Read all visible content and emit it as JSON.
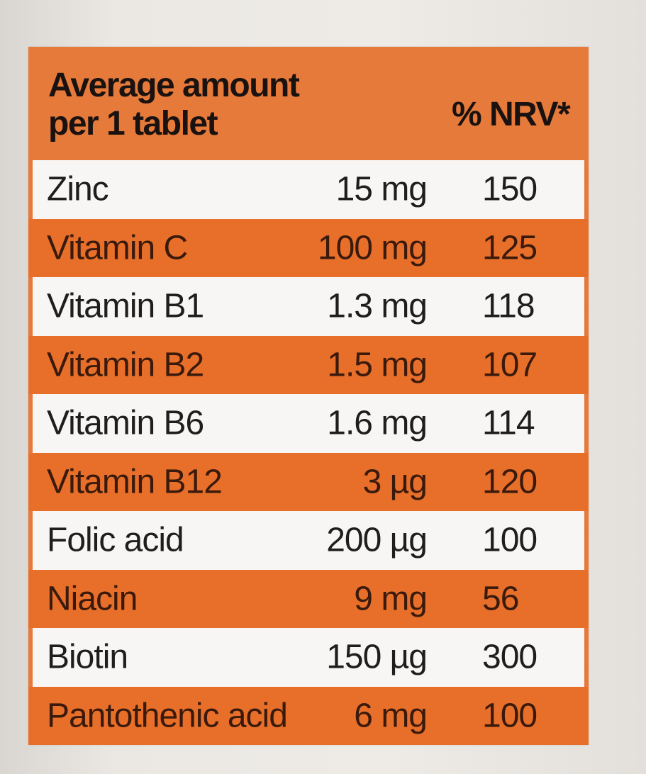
{
  "table": {
    "header": {
      "amount_line1": "Average amount",
      "amount_line2": "per 1 tablet",
      "nrv": "% NRV*"
    },
    "rows": [
      {
        "name": "Zinc",
        "amount": "15 mg",
        "nrv": "150"
      },
      {
        "name": "Vitamin C",
        "amount": "100 mg",
        "nrv": "125"
      },
      {
        "name": "Vitamin B1",
        "amount": "1.3 mg",
        "nrv": "118"
      },
      {
        "name": "Vitamin B2",
        "amount": "1.5 mg",
        "nrv": "107"
      },
      {
        "name": "Vitamin B6",
        "amount": "1.6 mg",
        "nrv": "114"
      },
      {
        "name": "Vitamin B12",
        "amount": "3 µg",
        "nrv": "120"
      },
      {
        "name": "Folic acid",
        "amount": "200 µg",
        "nrv": "100"
      },
      {
        "name": "Niacin",
        "amount": "9 mg",
        "nrv": "56"
      },
      {
        "name": "Biotin",
        "amount": "150 µg",
        "nrv": "300"
      },
      {
        "name": "Pantothenic acid",
        "amount": "6 mg",
        "nrv": "100"
      }
    ]
  },
  "colors": {
    "orange": "#e86f2a",
    "light_row": "#f7f6f4",
    "text": "#1a1210"
  }
}
